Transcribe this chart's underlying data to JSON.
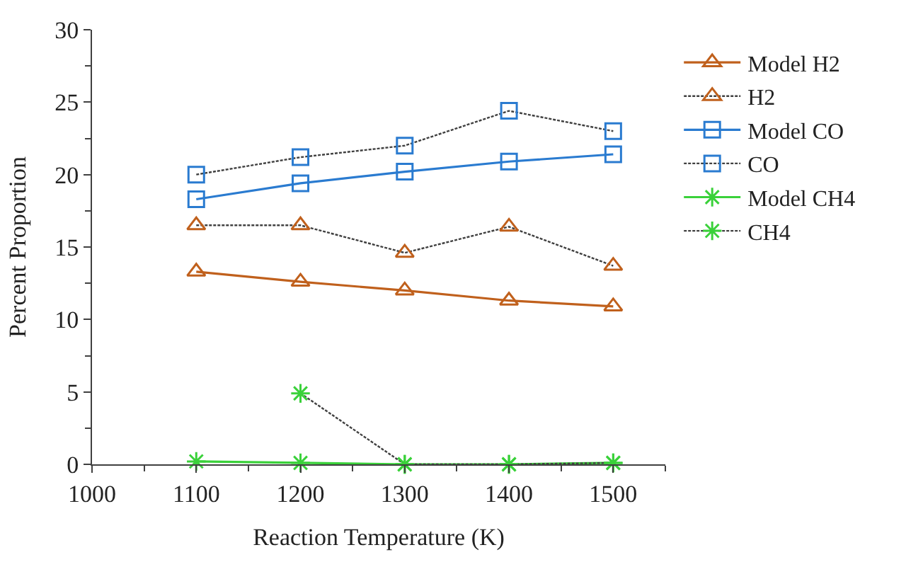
{
  "chart_data": {
    "type": "line",
    "xlabel": "Reaction Temperature (K)",
    "ylabel": "Percent Proportion",
    "x": [
      1100,
      1200,
      1300,
      1400,
      1500
    ],
    "xlim": [
      1000,
      1550
    ],
    "xticks": [
      1000,
      1100,
      1200,
      1300,
      1400,
      1500
    ],
    "ylim": [
      0,
      30
    ],
    "yticks": [
      0,
      5,
      10,
      15,
      20,
      25,
      30
    ],
    "legend": "right",
    "series": [
      {
        "name": "Model H2",
        "color": "#c0601c",
        "marker": "triangle",
        "line_style": "solid",
        "values": [
          13.3,
          12.6,
          12.0,
          11.3,
          10.9
        ]
      },
      {
        "name": "H2",
        "color": "#c0601c",
        "marker": "triangle",
        "line_style": "dashed",
        "values": [
          16.5,
          16.5,
          14.6,
          16.4,
          13.7
        ]
      },
      {
        "name": "Model CO",
        "color": "#2a7bd0",
        "marker": "square",
        "line_style": "solid",
        "values": [
          18.3,
          19.4,
          20.2,
          20.9,
          21.4
        ]
      },
      {
        "name": "CO",
        "color": "#2a7bd0",
        "marker": "square",
        "line_style": "dashed",
        "values": [
          20.0,
          21.2,
          22.0,
          24.4,
          23.0
        ]
      },
      {
        "name": "Model CH4",
        "color": "#3ad13a",
        "marker": "cross",
        "line_style": "solid",
        "values": [
          0.2,
          0.1,
          0.0,
          0.0,
          0.1
        ]
      },
      {
        "name": "CH4",
        "color": "#3ad13a",
        "marker": "cross",
        "line_style": "dashed",
        "x": [
          1200,
          1300,
          1400,
          1500
        ],
        "values": [
          4.9,
          0.0,
          0.0,
          0.1
        ]
      }
    ]
  }
}
